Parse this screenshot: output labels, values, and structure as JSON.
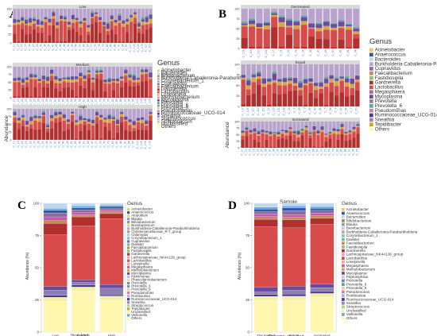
{
  "colors": {
    "Acinetobacter": "#f3c26e",
    "Anaerococcus": "#2c5aa8",
    "Bacteroides": "#c0d8ef",
    "Bifidobacterium": "#b68a3e",
    "Blautia": "#6fa5dd",
    "Burkholderia-Caballeronia-Paraburkholderia": "#b9a3ce",
    "Corynebacterium_1": "#7fc4c2",
    "Cupriavidus": "#8a6b9e",
    "Faecalibacterium": "#c98a55",
    "Fastidiosipila": "#8ec07c",
    "Gardnerella": "#b22f2f",
    "Lactobacillus": "#d94a4a",
    "Lonepinella": "#f2a6a6",
    "Megasphaera": "#c55ba8",
    "Methylobacterium": "#d7a64a",
    "Mycoplasma": "#6b4b9e",
    "Prevotella": "#8a7fb0",
    "Prevotella_6": "#5aa7a1",
    "Prevotella_9": "#f0c9a0",
    "Pseudomonas": "#e07aa8",
    "Ruminococcaceae_UCG-014": "#4e3a8c",
    "Sneathia": "#9b7fc4",
    "Tepidibacter": "#d4a017",
    "Unclassified": "#f4f0a6",
    "Veillonella": "#7f9ec9",
    "Others": "#fff6b0",
    "Staphylococcus": "#e6b8d8",
    "Streptococcus": "#a7d39a",
    "Alistipes": "#bfae8f",
    "Atopobium": "#e8d37a",
    "Christensenellaceae_R-7_group": "#cc8f6d",
    "Chlamydia": "#9ad3e8",
    "Parvimonas": "#c6b3e6",
    "Phascolarctobacterium": "#d7ec9c",
    "Dialister": "#6fbf8f",
    "Lachnospiraceae_NK4A136_group": "#e8a0c0",
    "Romboutsia": "#a3b2e0"
  },
  "panel_labels": [
    "A",
    "B",
    "C",
    "D"
  ],
  "chart_data": [
    {
      "id": "A",
      "type": "bar",
      "stacked": true,
      "xlabel": "Sample",
      "ylabel": "Abundance",
      "legend_title": "Genus",
      "legend": [
        "Acinetobacter",
        "Bacteroides",
        "Bifidobacterium",
        "Burkholderia-Caballeronia-Paraburkholderia",
        "Corynebacterium_1",
        "Cupriavidus",
        "Faecalibacterium",
        "Gardnerella",
        "Lactobacillus",
        "Lonepinella",
        "Methylobacterium",
        "Mycoplasma",
        "Prevotella",
        "Prevotella_6",
        "Prevotella_9",
        "Pseudomonas",
        "Ruminococcaceae_UCG-014",
        "Sneathia",
        "Staphylococcus",
        "Streptococcus",
        "Unclassified",
        "Others"
      ],
      "facets": [
        {
          "title": "Low",
          "n_bars": 36,
          "ytick_labels": [
            "0",
            "25",
            "50",
            "75",
            "100"
          ]
        },
        {
          "title": "Medium",
          "n_bars": 34,
          "ytick_labels": [
            "0",
            "25",
            "50",
            "75",
            "100"
          ]
        },
        {
          "title": "High",
          "n_bars": 34,
          "ytick_labels": [
            "0",
            "25",
            "50",
            "75",
            "100"
          ]
        }
      ]
    },
    {
      "id": "B",
      "type": "bar",
      "stacked": true,
      "xlabel": "Sample",
      "ylabel": "Abundance",
      "legend_title": "Genus",
      "legend": [
        "Acinetobacter",
        "Anaerococcus",
        "Bacteroides",
        "Burkholderia-Caballeronia-Paraburkholderia",
        "Cupriavidus",
        "Faecalibacterium",
        "Fastidiosipila",
        "Gardnerella",
        "Lactobacillus",
        "Megasphaera",
        "Mycoplasma",
        "Prevotella",
        "Prevotella_6",
        "Pseudomonas",
        "Ruminococcaceae_UCG-014",
        "Sneathia",
        "Tepidibacter",
        "Others"
      ],
      "facets": [
        {
          "title": "Decreased",
          "ytick_labels": [
            "0",
            "25",
            "50",
            "75",
            "100"
          ],
          "samples": [
            "C_104",
            "C_116",
            "C_120",
            "C_122",
            "C_17",
            "C_21",
            "C_22",
            "C_26",
            "C_37",
            "C_38",
            "C_40",
            "C_63",
            "C_80",
            "C_82",
            "C_92",
            "C_94"
          ]
        },
        {
          "title": "Equal",
          "ytick_labels": [
            "0",
            "25",
            "50",
            "75",
            "100"
          ],
          "samples": [
            "C_103",
            "C_106",
            "C_110",
            "C_112",
            "C_117",
            "C_12",
            "C_123",
            "C_125",
            "C_128",
            "C_15",
            "C_2",
            "C_29",
            "C_3",
            "C_39",
            "C_43",
            "C_46",
            "C_5",
            "C_54",
            "C_6",
            "C_61",
            "C_64",
            "C_7",
            "C_70"
          ]
        },
        {
          "title": "Increased",
          "ytick_labels": [
            "0",
            "25",
            "50",
            "75",
            "100"
          ],
          "n_bars": 30
        }
      ]
    },
    {
      "id": "C",
      "type": "bar",
      "stacked": true,
      "xlabel": "Viral_load",
      "ylabel": "Abundance (%)",
      "ylim": [
        0,
        100
      ],
      "yticks": [
        0,
        25,
        50,
        75,
        100
      ],
      "legend_title": "Genus",
      "categories": [
        "Low",
        "Medium",
        "High"
      ],
      "series": [
        {
          "name": "Others",
          "values": [
            24,
            32,
            25
          ]
        },
        {
          "name": "Unclassified",
          "values": [
            3,
            3,
            3
          ]
        },
        {
          "name": "Ruminococcaceae_UCG-014",
          "values": [
            1.5,
            1.5,
            1
          ]
        },
        {
          "name": "Prevotella",
          "values": [
            4,
            2,
            5
          ]
        },
        {
          "name": "Mycoplasma",
          "values": [
            3,
            2,
            3
          ]
        },
        {
          "name": "Lactobacillus",
          "values": [
            40,
            42,
            51
          ]
        },
        {
          "name": "Gardnerella",
          "values": [
            9,
            7,
            4
          ]
        },
        {
          "name": "Faecalibacterium",
          "values": [
            2,
            1.5,
            1.5
          ]
        },
        {
          "name": "Megasphaera",
          "values": [
            3,
            2,
            1.5
          ]
        },
        {
          "name": "Cupriavidus",
          "values": [
            3,
            2,
            1
          ]
        },
        {
          "name": "Anaerococcus",
          "values": [
            2,
            1.5,
            1.5
          ]
        },
        {
          "name": "Blautia",
          "values": [
            1.5,
            1.5,
            1
          ]
        },
        {
          "name": "Bacteroides",
          "values": [
            4,
            2,
            1.5
          ]
        }
      ],
      "legend": [
        "Acinetobacter",
        "Anaerococcus",
        "Atopobium",
        "Blautia",
        "Bifidobacterium",
        "Brevibacterium",
        "Burkholderia-Caballeronia-Paraburkholderia",
        "Christensenellaceae_R-7_group",
        "Chlamydia",
        "Corynebacterium_1",
        "Cupriavidus",
        "Dialister",
        "Faecalibacterium",
        "Fastidiosipila",
        "Gardnerella",
        "Lachnospiraceae_NK4A136_group",
        "Lactobacillus",
        "Lonepinella",
        "Megasphaera",
        "Methylobacterium",
        "Mycoplasma",
        "Parvimonas",
        "Phascolarctobacterium",
        "Prevotella",
        "Prevotella_6",
        "Prevotella_9",
        "Pseudomonas",
        "Romboutsia",
        "Ruminococcaceae_UCG-014",
        "Sneathia",
        "Streptococcus",
        "Tepidibacter",
        "Unclassified",
        "Veillonella",
        "Others"
      ]
    },
    {
      "id": "D",
      "type": "bar",
      "stacked": true,
      "xlabel": "Outcome_viral_load",
      "ylabel": "Abundance (%)",
      "ylim": [
        0,
        100
      ],
      "yticks": [
        0,
        25,
        50,
        75,
        100
      ],
      "legend_title": "Genus",
      "categories": [
        "Decreased",
        "Equal",
        "Increased"
      ],
      "series": [
        {
          "name": "Others",
          "values": [
            25,
            24,
            27
          ]
        },
        {
          "name": "Unclassified",
          "values": [
            3,
            3,
            3
          ]
        },
        {
          "name": "Ruminococcaceae_UCG-014",
          "values": [
            1.5,
            1.5,
            1.5
          ]
        },
        {
          "name": "Prevotella",
          "values": [
            2,
            3,
            3
          ]
        },
        {
          "name": "Mycoplasma",
          "values": [
            4,
            3,
            3
          ]
        },
        {
          "name": "Lactobacillus",
          "values": [
            47,
            44,
            46
          ]
        },
        {
          "name": "Gardnerella",
          "values": [
            6,
            6,
            5
          ]
        },
        {
          "name": "Faecalibacterium",
          "values": [
            2,
            2,
            2
          ]
        },
        {
          "name": "Megasphaera",
          "values": [
            2,
            2,
            2
          ]
        },
        {
          "name": "Cupriavidus",
          "values": [
            2,
            3,
            2
          ]
        },
        {
          "name": "Anaerococcus",
          "values": [
            2,
            2,
            1.5
          ]
        },
        {
          "name": "Blautia",
          "values": [
            1.5,
            1.5,
            1.5
          ]
        },
        {
          "name": "Bacteroides",
          "values": [
            3,
            2,
            2.5
          ]
        }
      ],
      "legend": [
        "Acinetobacter",
        "Anaerococcus",
        "Bacteroides",
        "Bifidobacterium",
        "Blautia",
        "Brevibacterium",
        "Burkholderia-Caballeronia-Paraburkholderia",
        "Corynebacterium_1",
        "Dialister",
        "Faecalibacterium",
        "Fastidiosipila",
        "Gardnerella",
        "Lachnospiraceae_NK4A136_group",
        "Lactobacillus",
        "Lonepinella",
        "Megasphaera",
        "Methylobacterium",
        "Mycoplasma",
        "Peptoniphilus",
        "Prevotella",
        "Prevotella_6",
        "Prevotella_9",
        "Pseudomonas",
        "Romboutsia",
        "Ruminococcaceae_UCG-014",
        "Sneathia",
        "Streptococcus",
        "Unclassified",
        "Veillonella",
        "Others"
      ]
    }
  ]
}
